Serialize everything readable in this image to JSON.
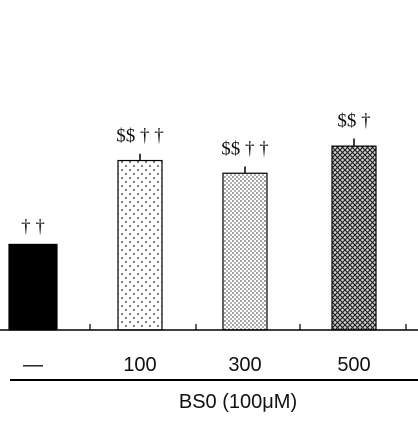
{
  "chart_data": {
    "type": "bar",
    "categories": [
      "—",
      "100",
      "300",
      "500"
    ],
    "values": [
      101,
      200,
      185,
      217
    ],
    "errors": [
      0,
      8,
      8,
      9
    ],
    "annotations": [
      "† †",
      "$$ † †",
      "$$ † †",
      "$$ †"
    ],
    "group_label": "BS0 (100μM)",
    "ylim": [
      0,
      380
    ],
    "grid": false,
    "fills": [
      "solid",
      "sparse-dots",
      "dense-dots",
      "crosshatch"
    ],
    "bar_color": "#000000",
    "axis_color": "#000000"
  }
}
